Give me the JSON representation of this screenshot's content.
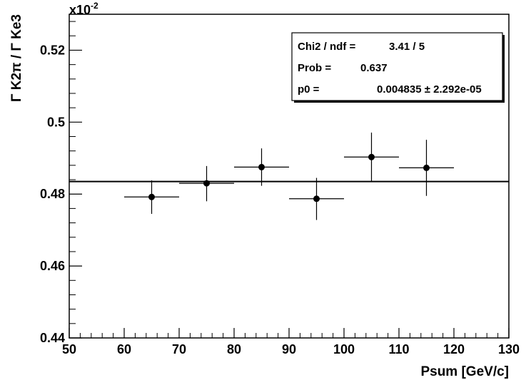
{
  "chart_data": {
    "type": "scatter",
    "xlabel": "Psum [GeV/c]",
    "ylabel": "Γ K2π / Γ Ke3",
    "exponent_label": "x10",
    "exponent_power": "-2",
    "xlim": [
      50,
      130
    ],
    "ylim": [
      0.44,
      0.53
    ],
    "x_ticks": [
      50,
      60,
      70,
      80,
      90,
      100,
      110,
      120,
      130
    ],
    "x_tick_labels": [
      "50",
      "60",
      "70",
      "80",
      "90",
      "100",
      "110",
      "120",
      "130"
    ],
    "y_ticks": [
      0.44,
      0.46,
      0.48,
      0.5,
      0.52
    ],
    "y_tick_labels": [
      "0.44",
      "0.46",
      "0.48",
      "0.5",
      "0.52"
    ],
    "grid": false,
    "points": [
      {
        "x": 65,
        "y": 0.4792,
        "xerr": 5,
        "yerr_low": 0.0047,
        "yerr_high": 0.0046
      },
      {
        "x": 75,
        "y": 0.483,
        "xerr": 5,
        "yerr_low": 0.005,
        "yerr_high": 0.0048
      },
      {
        "x": 85,
        "y": 0.4875,
        "xerr": 5,
        "yerr_low": 0.0052,
        "yerr_high": 0.0052
      },
      {
        "x": 95,
        "y": 0.4787,
        "xerr": 5,
        "yerr_low": 0.0059,
        "yerr_high": 0.0058
      },
      {
        "x": 105,
        "y": 0.4903,
        "xerr": 5,
        "yerr_low": 0.0068,
        "yerr_high": 0.0068
      },
      {
        "x": 115,
        "y": 0.4873,
        "xerr": 5,
        "yerr_low": 0.0078,
        "yerr_high": 0.0078
      }
    ],
    "fit_line": {
      "type": "constant",
      "y": 0.4835
    },
    "stats_box": {
      "placement": "top-right",
      "rows": [
        {
          "label": "Chi2 / ndf =",
          "value": "3.41 / 5"
        },
        {
          "label": "Prob  =",
          "value": "0.637"
        },
        {
          "label": "p0      =",
          "value": "0.004835 ± 2.292e-05"
        }
      ]
    }
  }
}
